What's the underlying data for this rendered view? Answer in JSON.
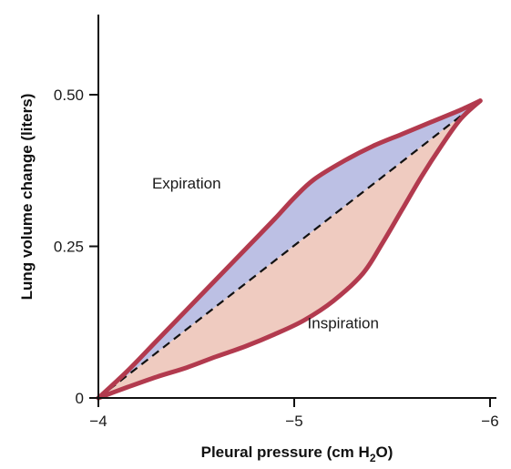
{
  "chart_data": {
    "type": "area",
    "xlabel_prefix": "Pleural pressure (cm H",
    "xlabel_sub": "2",
    "xlabel_suffix": "O)",
    "ylabel": "Lung volume change (liters)",
    "xlim": [
      -4,
      -6
    ],
    "ylim": [
      0,
      0.6
    ],
    "x_ticks": [
      {
        "value": -4,
        "label": "−4"
      },
      {
        "value": -5,
        "label": "−5"
      },
      {
        "value": -6,
        "label": "−6"
      }
    ],
    "y_ticks": [
      {
        "value": 0,
        "label": "0"
      },
      {
        "value": 0.25,
        "label": "0.25"
      },
      {
        "value": 0.5,
        "label": "0.50"
      }
    ],
    "series": [
      {
        "name": "Expiration",
        "x": [
          -4.0,
          -4.15,
          -4.3,
          -4.45,
          -4.6,
          -4.75,
          -4.9,
          -5.0,
          -5.1,
          -5.25,
          -5.4,
          -5.55,
          -5.7,
          -5.85,
          -5.95
        ],
        "y": [
          0.0,
          0.045,
          0.095,
          0.145,
          0.195,
          0.245,
          0.295,
          0.33,
          0.36,
          0.39,
          0.415,
          0.435,
          0.455,
          0.475,
          0.49
        ]
      },
      {
        "name": "Inspiration",
        "x": [
          -4.0,
          -4.15,
          -4.3,
          -4.45,
          -4.6,
          -4.75,
          -4.9,
          -5.05,
          -5.2,
          -5.35,
          -5.45,
          -5.55,
          -5.65,
          -5.75,
          -5.85,
          -5.95
        ],
        "y": [
          0.0,
          0.018,
          0.035,
          0.05,
          0.068,
          0.085,
          0.105,
          0.128,
          0.16,
          0.205,
          0.255,
          0.31,
          0.365,
          0.415,
          0.46,
          0.49
        ]
      },
      {
        "name": "",
        "style": "dashed",
        "x": [
          -4.0,
          -5.95
        ],
        "y": [
          0.0,
          0.49
        ]
      }
    ],
    "annotations": [
      {
        "text": "Expiration",
        "x": -4.45,
        "y": 0.345
      },
      {
        "text": "Inspiration",
        "x": -5.25,
        "y": 0.115
      }
    ],
    "grid": false,
    "legend": "none"
  },
  "colors": {
    "curve": "#b23a4e",
    "expiration_fill": "#bcc0e4",
    "inspiration_fill": "#efcbc0",
    "axis": "#111111",
    "dashed": "#111111"
  }
}
